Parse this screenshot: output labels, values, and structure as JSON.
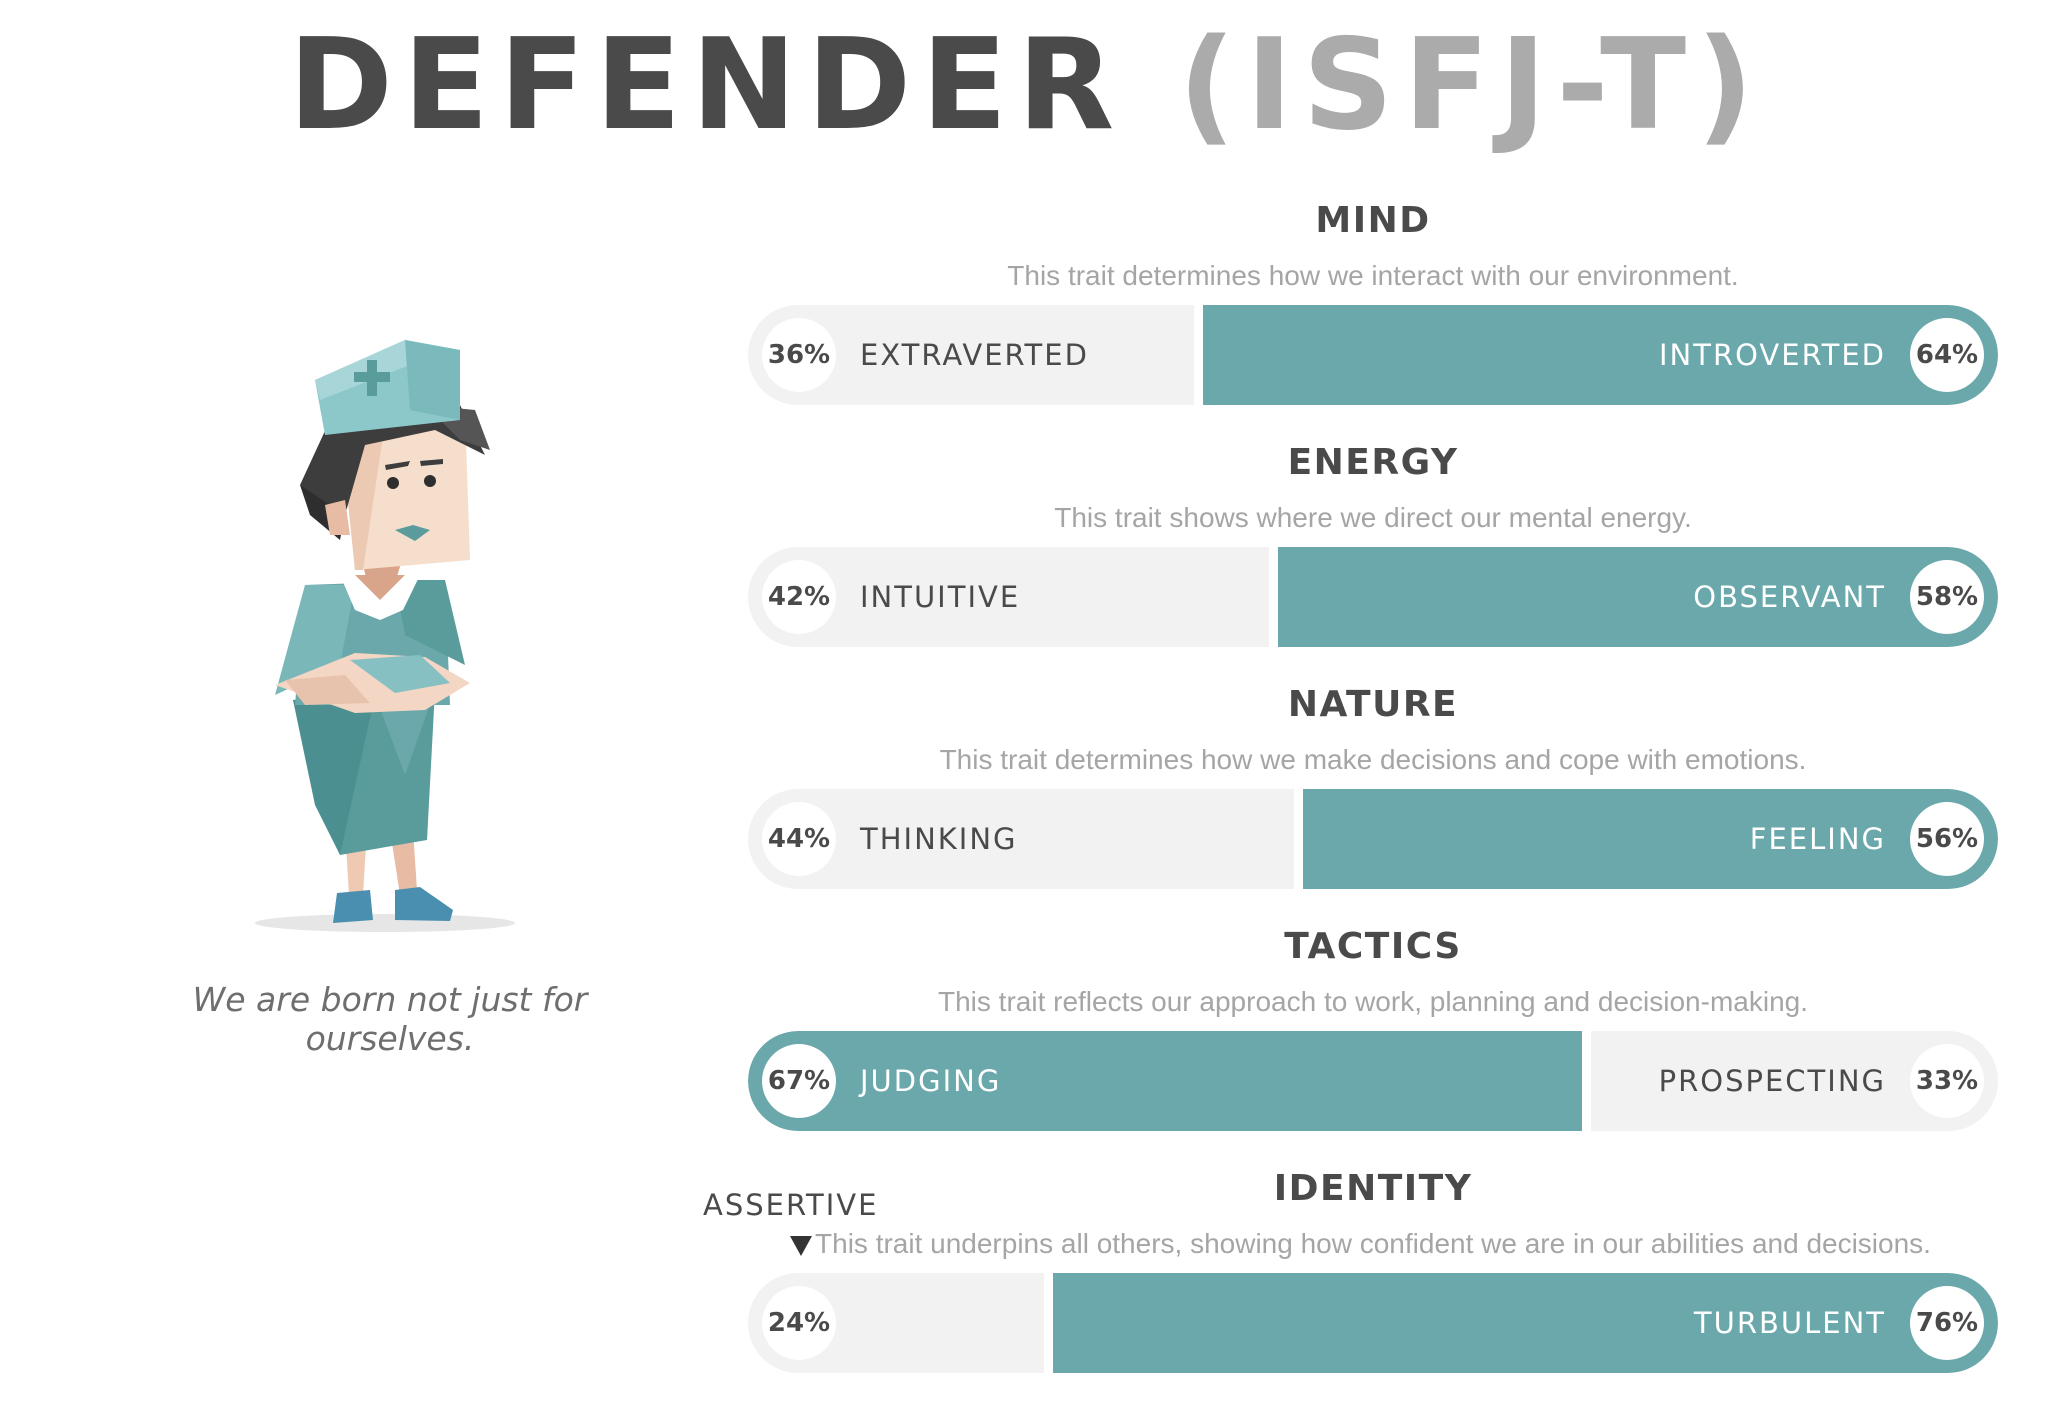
{
  "header": {
    "title_main": "DEFENDER",
    "title_code": "(ISFJ-T)"
  },
  "quote": "We are born not just for ourselves.",
  "assertive_marker": "ASSERTIVE",
  "colors": {
    "fill": "#6aa8ab",
    "track": "#f2f2f2",
    "title": "#4a4a4a",
    "muted": "#ababab"
  },
  "icons": {
    "character": "defender-nurse-character",
    "pointer": "triangle-down-icon"
  },
  "chart_data": {
    "type": "bar",
    "orientation": "horizontal",
    "scale": "percent",
    "traits": [
      {
        "title": "MIND",
        "description": "This trait determines how we interact with our environment.",
        "left": {
          "label": "EXTRAVERTED",
          "pct_text": "36%",
          "value": 36
        },
        "right": {
          "label": "INTROVERTED",
          "pct_text": "64%",
          "value": 64
        },
        "dominant": "right"
      },
      {
        "title": "ENERGY",
        "description": "This trait shows where we direct our mental energy.",
        "left": {
          "label": "INTUITIVE",
          "pct_text": "42%",
          "value": 42
        },
        "right": {
          "label": "OBSERVANT",
          "pct_text": "58%",
          "value": 58
        },
        "dominant": "right"
      },
      {
        "title": "NATURE",
        "description": "This trait determines how we make decisions and cope with emotions.",
        "left": {
          "label": "THINKING",
          "pct_text": "44%",
          "value": 44
        },
        "right": {
          "label": "FEELING",
          "pct_text": "56%",
          "value": 56
        },
        "dominant": "right"
      },
      {
        "title": "TACTICS",
        "description": "This trait reflects our approach to work, planning and decision-making.",
        "left": {
          "label": "JUDGING",
          "pct_text": "67%",
          "value": 67
        },
        "right": {
          "label": "PROSPECTING",
          "pct_text": "33%",
          "value": 33
        },
        "dominant": "left"
      },
      {
        "title": "IDENTITY",
        "description": "This trait underpins all others, showing how confident we are in our abilities and decisions.",
        "left": {
          "label": "",
          "pct_text": "24%",
          "value": 24
        },
        "right": {
          "label": "TURBULENT",
          "pct_text": "76%",
          "value": 76
        },
        "dominant": "right"
      }
    ]
  }
}
